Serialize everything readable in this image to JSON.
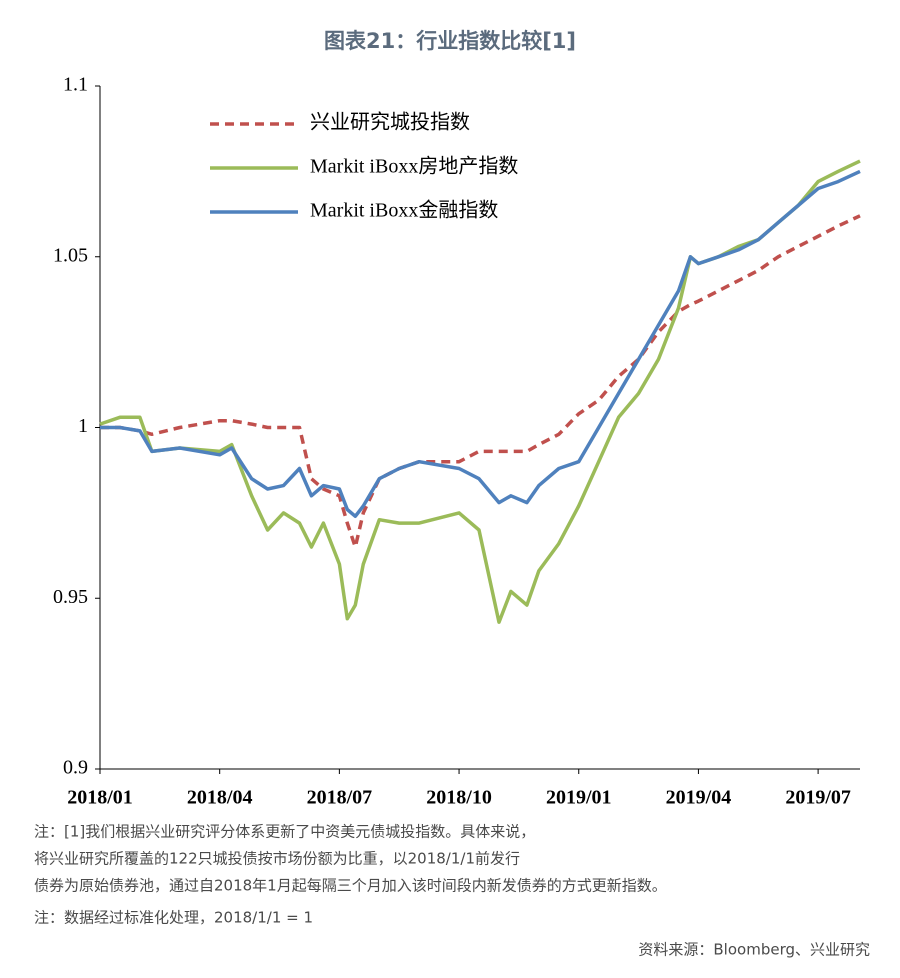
{
  "chart_data": {
    "type": "line",
    "title": "图表21：行业指数比较[1]",
    "x": [
      0,
      0.5,
      1,
      1.3,
      2,
      3,
      3.3,
      3.8,
      4.2,
      4.6,
      5,
      5.3,
      5.6,
      6,
      6.2,
      6.4,
      6.6,
      7,
      7.5,
      8,
      9,
      9.5,
      10,
      10.3,
      10.7,
      11,
      11.5,
      12,
      12.5,
      13,
      13.5,
      14,
      14.5,
      14.8,
      15,
      15.5,
      16,
      16.5,
      17,
      17.5,
      18,
      18.5,
      19.05
    ],
    "series": [
      {
        "name": "兴业研究城投指数",
        "color": "#c0504d",
        "dash": true,
        "values": [
          1.0,
          1.0,
          0.999,
          0.998,
          1.0,
          1.002,
          1.002,
          1.001,
          1.0,
          1.0,
          1.0,
          0.985,
          0.982,
          0.98,
          0.972,
          0.965,
          0.975,
          0.985,
          0.988,
          0.99,
          0.99,
          0.993,
          0.993,
          0.993,
          0.993,
          0.995,
          0.998,
          1.004,
          1.008,
          1.015,
          1.02,
          1.028,
          1.034,
          1.036,
          1.037,
          1.04,
          1.043,
          1.046,
          1.05,
          1.053,
          1.056,
          1.059,
          1.062
        ]
      },
      {
        "name": "Markit iBoxx房地产指数",
        "color": "#9bbb59",
        "dash": false,
        "values": [
          1.001,
          1.003,
          1.003,
          0.993,
          0.994,
          0.993,
          0.995,
          0.98,
          0.97,
          0.975,
          0.972,
          0.965,
          0.972,
          0.96,
          0.944,
          0.948,
          0.96,
          0.973,
          0.972,
          0.972,
          0.975,
          0.97,
          0.943,
          0.952,
          0.948,
          0.958,
          0.966,
          0.977,
          0.99,
          1.003,
          1.01,
          1.02,
          1.035,
          1.05,
          1.048,
          1.05,
          1.053,
          1.055,
          1.06,
          1.065,
          1.072,
          1.075,
          1.078
        ]
      },
      {
        "name": "Markit iBoxx金融指数",
        "color": "#4f81bd",
        "dash": false,
        "values": [
          1.0,
          1.0,
          0.999,
          0.993,
          0.994,
          0.992,
          0.994,
          0.985,
          0.982,
          0.983,
          0.988,
          0.98,
          0.983,
          0.982,
          0.976,
          0.974,
          0.977,
          0.985,
          0.988,
          0.99,
          0.988,
          0.985,
          0.978,
          0.98,
          0.978,
          0.983,
          0.988,
          0.99,
          1.0,
          1.01,
          1.02,
          1.03,
          1.04,
          1.05,
          1.048,
          1.05,
          1.052,
          1.055,
          1.06,
          1.065,
          1.07,
          1.072,
          1.075
        ]
      }
    ],
    "xlim": [
      0,
      19.05
    ],
    "xticks": [
      {
        "value": 0,
        "label": "2018/01"
      },
      {
        "value": 3,
        "label": "2018/04"
      },
      {
        "value": 6,
        "label": "2018/07"
      },
      {
        "value": 9,
        "label": "2018/10"
      },
      {
        "value": 12,
        "label": "2019/01"
      },
      {
        "value": 15,
        "label": "2019/04"
      },
      {
        "value": 18,
        "label": "2019/07"
      }
    ],
    "ylim": [
      0.9,
      1.1
    ],
    "yticks": [
      0.9,
      0.95,
      1,
      1.05,
      1.1
    ],
    "legend": "top-left",
    "notes": [
      "注：[1]我们根据兴业研究评分体系更新了中资美元债城投指数。具体来说，",
      "将兴业研究所覆盖的122只城投债按市场份额为比重，以2018/1/1前发行",
      "债券为原始债券池，通过自2018年1月起每隔三个月加入该时间段内新发债券的方式更新指数。",
      "注：数据经过标准化处理，2018/1/1 = 1"
    ],
    "source": "资料来源：Bloomberg、兴业研究"
  }
}
